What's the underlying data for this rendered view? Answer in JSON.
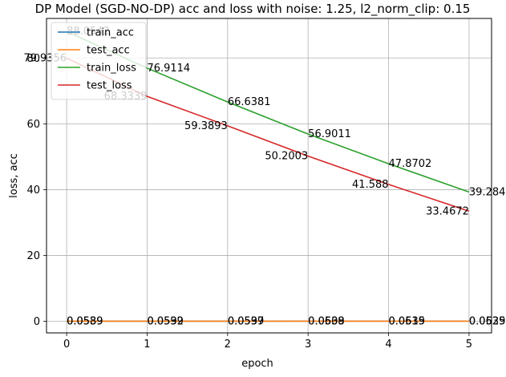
{
  "chart_data": {
    "type": "line",
    "title": "DP Model (SGD-NO-DP) acc and loss with noise: 1.25, l2_norm_clip: 0.15",
    "xlabel": "epoch",
    "ylabel": "loss, acc",
    "x": [
      0,
      1,
      2,
      3,
      4,
      5
    ],
    "xlim": [
      -0.25,
      5.28
    ],
    "ylim": [
      -3.5,
      92
    ],
    "xticks": [
      "0",
      "1",
      "2",
      "3",
      "4",
      "5"
    ],
    "yticks": [
      "0",
      "20",
      "40",
      "60",
      "80"
    ],
    "grid": true,
    "legend_position": "upper-left",
    "series": [
      {
        "name": "train_acc",
        "color": "#1f77b4",
        "values": [
          0.0589,
          0.0592,
          0.0597,
          0.0608,
          0.0615,
          0.0625
        ],
        "labels": [
          "0.0589",
          "0.0592",
          "0.0597",
          "0.0608",
          "0.0615",
          "0.0625"
        ]
      },
      {
        "name": "test_acc",
        "color": "#ff7f0e",
        "values": [
          0.0539,
          0.0539,
          0.0539,
          0.0539,
          0.0539,
          0.0539
        ],
        "labels": [
          "0.0539",
          "0.0539",
          "0.0539",
          "0.0539",
          "0.0539",
          "0.0539"
        ]
      },
      {
        "name": "train_loss",
        "color": "#2ca02c",
        "values": [
          88.0542,
          76.9114,
          66.6381,
          56.9011,
          47.8702,
          39.2845
        ],
        "labels": [
          "88.0542",
          "76.9114",
          "66.6381",
          "56.9011",
          "47.8702",
          "39.2845"
        ]
      },
      {
        "name": "test_loss",
        "color": "#d62728",
        "values": [
          79.9356,
          68.3339,
          59.3893,
          50.2003,
          41.588,
          33.4672
        ],
        "labels": [
          "79.9356",
          "68.3339",
          "59.3893",
          "50.2003",
          "41.588",
          "33.4672"
        ]
      }
    ]
  }
}
